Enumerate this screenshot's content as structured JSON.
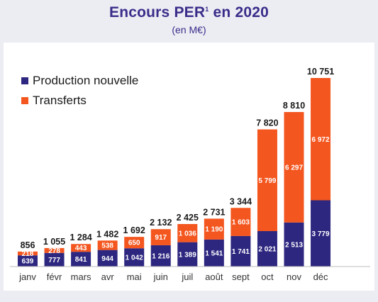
{
  "title": "Encours PER",
  "title_sup": "1",
  "title_suffix": " en 2020",
  "subtitle": "(en M€)",
  "legend": [
    {
      "label": "Production nouvelle",
      "color": "#2e2780"
    },
    {
      "label": "Transferts",
      "color": "#f4561f"
    }
  ],
  "chart_data": {
    "type": "bar",
    "stacked": true,
    "categories": [
      "janv",
      "févr",
      "mars",
      "avr",
      "mai",
      "juin",
      "juil",
      "août",
      "sept",
      "oct",
      "nov",
      "déc"
    ],
    "series": [
      {
        "name": "Production nouvelle",
        "color": "#2e2780",
        "values": [
          639,
          777,
          841,
          944,
          1042,
          1216,
          1389,
          1541,
          1741,
          2021,
          2513,
          3779
        ],
        "labels": [
          "639",
          "777",
          "841",
          "944",
          "1 042",
          "1 216",
          "1 389",
          "1 541",
          "1 741",
          "2 021",
          "2 513",
          "3 779"
        ]
      },
      {
        "name": "Transferts",
        "color": "#f4561f",
        "values": [
          218,
          278,
          443,
          538,
          650,
          917,
          1036,
          1190,
          1603,
          5799,
          6297,
          6972
        ],
        "labels": [
          "218",
          "278",
          "443",
          "538",
          "650",
          "917",
          "1 036",
          "1 190",
          "1 603",
          "5 799",
          "6 297",
          "6 972"
        ]
      }
    ],
    "totals": [
      856,
      1055,
      1284,
      1482,
      1692,
      2132,
      2425,
      2731,
      3344,
      7820,
      8810,
      10751
    ],
    "total_labels": [
      "856",
      "1 055",
      "1 284",
      "1 482",
      "1 692",
      "2 132",
      "2 425",
      "2 731",
      "3 344",
      "7 820",
      "8 810",
      "10 751"
    ],
    "ylim": [
      0,
      10751
    ],
    "legend_position": "top-left",
    "grid": false
  }
}
